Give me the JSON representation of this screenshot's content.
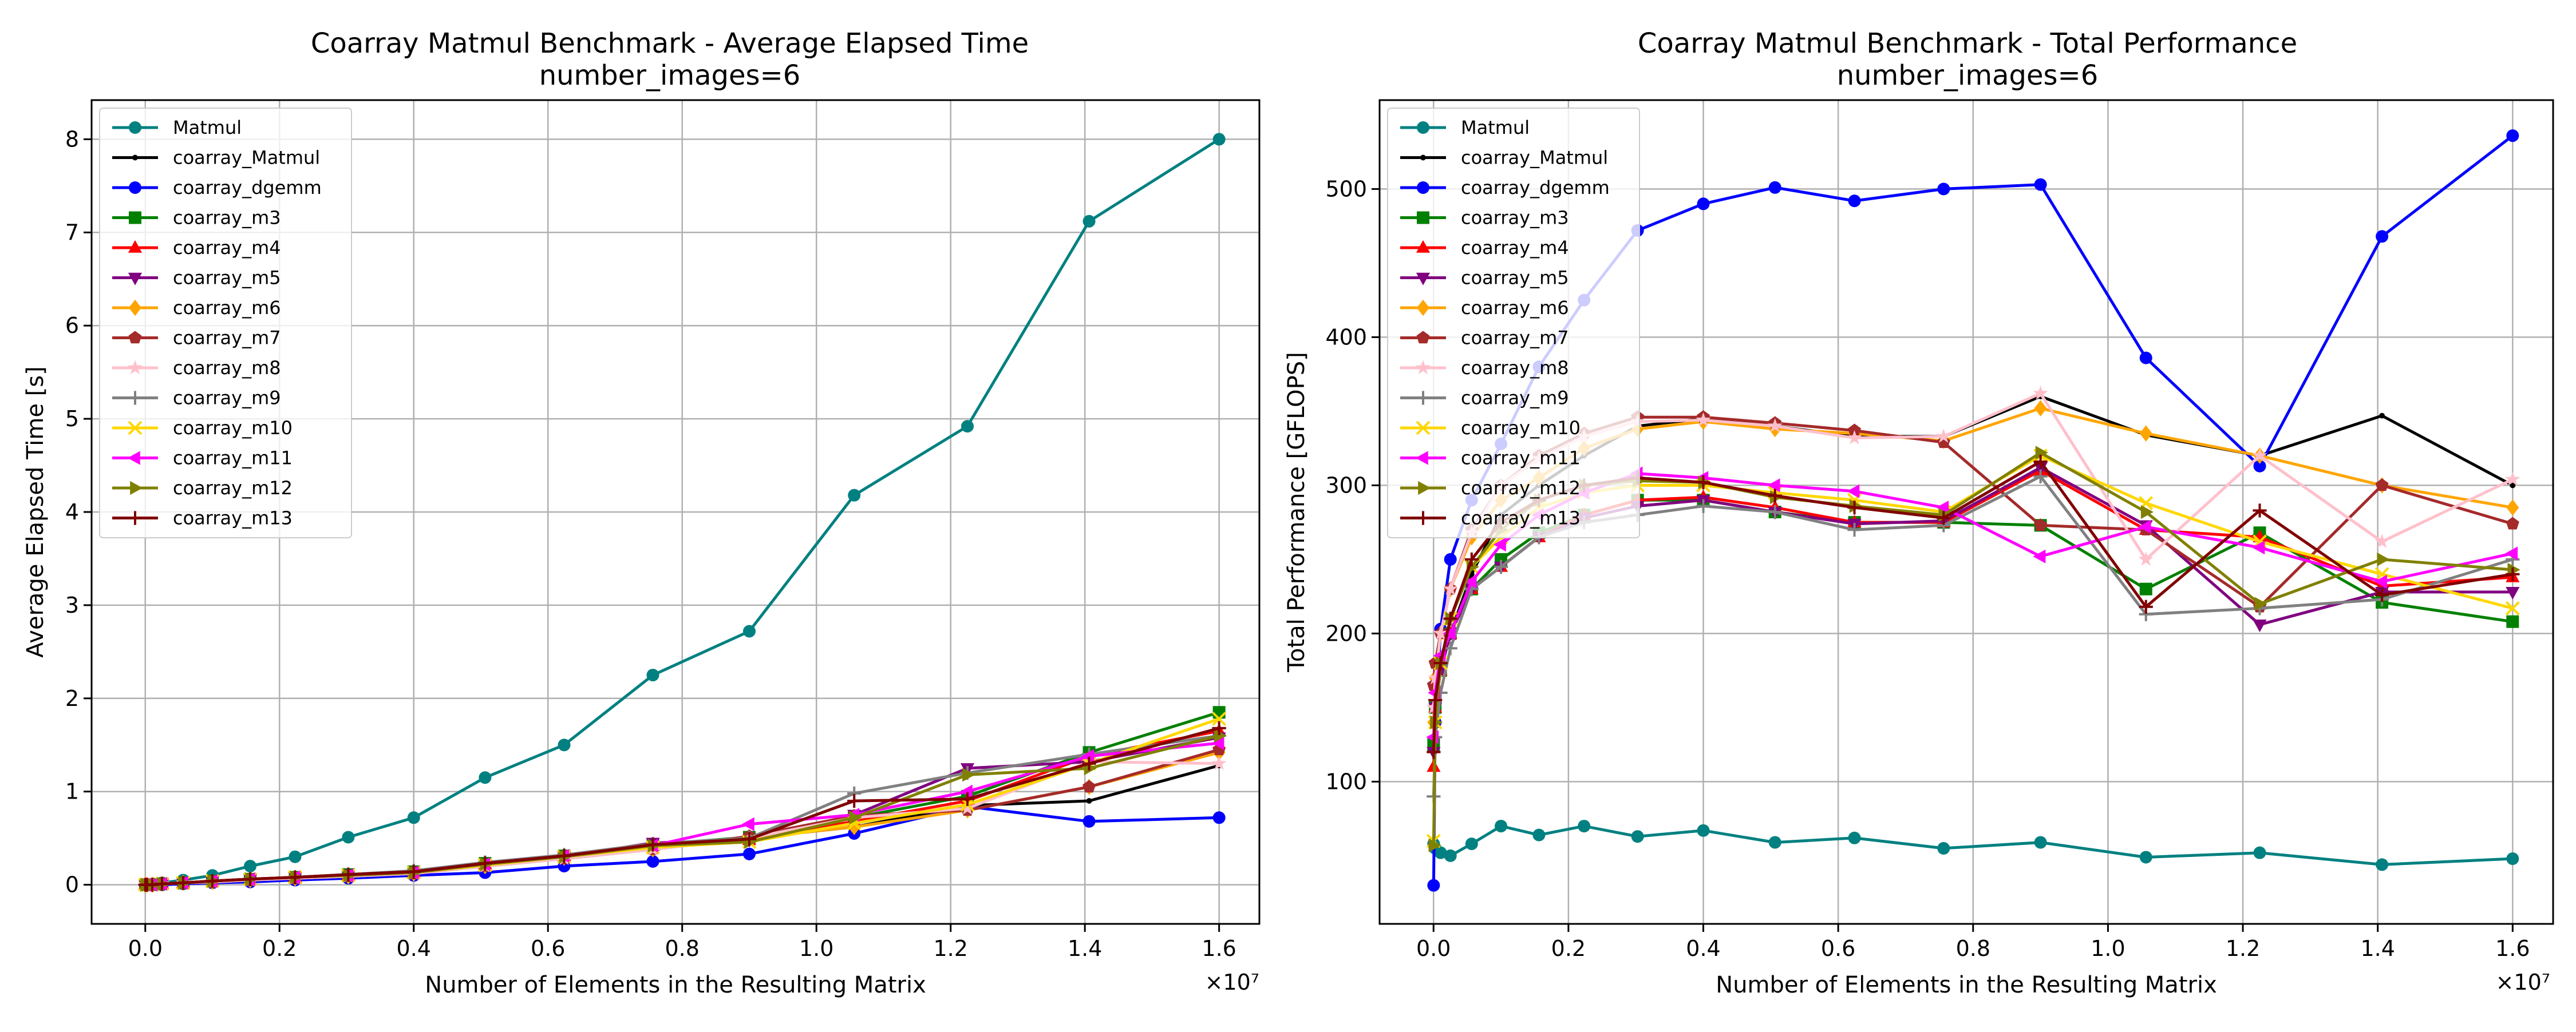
{
  "chart_data": [
    {
      "type": "line",
      "title": "Coarray Matmul Benchmark - Average Elapsed Time",
      "subtitle": "number_images=6",
      "xlabel": "Number of Elements in the Resulting Matrix",
      "ylabel": "Average Elapsed Time [s]",
      "x_offset_label": "×10⁷",
      "xlim": [
        -0.08,
        1.66
      ],
      "ylim": [
        -0.42,
        8.42
      ],
      "xticks": [
        0.0,
        0.2,
        0.4,
        0.6,
        0.8,
        1.0,
        1.2,
        1.4,
        1.6
      ],
      "xtick_labels": [
        "0.0",
        "0.2",
        "0.4",
        "0.6",
        "0.8",
        "1.0",
        "1.2",
        "1.4",
        "1.6"
      ],
      "yticks": [
        0,
        1,
        2,
        3,
        4,
        5,
        6,
        7,
        8
      ],
      "ytick_labels": [
        "0",
        "1",
        "2",
        "3",
        "4",
        "5",
        "6",
        "7",
        "8"
      ],
      "grid": true,
      "legend_position": "upper-left",
      "x": [
        0.0001,
        0.0025,
        0.0105,
        0.025,
        0.0565,
        0.1,
        0.1563,
        0.2232,
        0.3025,
        0.4,
        0.5063,
        0.6241,
        0.7563,
        0.9,
        1.0563,
        1.225,
        1.4063,
        1.6
      ],
      "series": [
        {
          "name": "Matmul",
          "color": "#008080",
          "marker": "circle",
          "values": [
            0.0,
            0.0,
            0.01,
            0.02,
            0.05,
            0.1,
            0.2,
            0.3,
            0.51,
            0.72,
            1.15,
            1.5,
            2.25,
            2.72,
            4.18,
            4.92,
            7.12,
            8.0
          ]
        },
        {
          "name": "coarray_Matmul",
          "color": "#000000",
          "marker": "point",
          "values": [
            0.0,
            0.0,
            0.0,
            0.01,
            0.02,
            0.03,
            0.05,
            0.07,
            0.09,
            0.12,
            0.2,
            0.28,
            0.38,
            0.5,
            0.62,
            0.85,
            0.9,
            1.28
          ]
        },
        {
          "name": "coarray_dgemm",
          "color": "#0000ff",
          "marker": "circle",
          "values": [
            0.0,
            0.0,
            0.0,
            0.0,
            0.01,
            0.02,
            0.03,
            0.05,
            0.07,
            0.1,
            0.13,
            0.2,
            0.25,
            0.33,
            0.55,
            0.84,
            0.68,
            0.72
          ]
        },
        {
          "name": "coarray_m3",
          "color": "#008000",
          "marker": "square",
          "values": [
            0.0,
            0.0,
            0.0,
            0.01,
            0.02,
            0.04,
            0.06,
            0.08,
            0.11,
            0.14,
            0.23,
            0.31,
            0.43,
            0.51,
            0.72,
            0.95,
            1.42,
            1.85
          ]
        },
        {
          "name": "coarray_m4",
          "color": "#ff0000",
          "marker": "triangle-up",
          "values": [
            0.0,
            0.0,
            0.0,
            0.01,
            0.02,
            0.03,
            0.05,
            0.08,
            0.1,
            0.13,
            0.22,
            0.31,
            0.42,
            0.48,
            0.68,
            0.9,
            1.38,
            1.65
          ]
        },
        {
          "name": "coarray_m5",
          "color": "#800080",
          "marker": "triangle-down",
          "values": [
            0.0,
            0.0,
            0.0,
            0.01,
            0.02,
            0.04,
            0.06,
            0.08,
            0.11,
            0.14,
            0.22,
            0.3,
            0.45,
            0.48,
            0.75,
            1.25,
            1.32,
            1.58
          ]
        },
        {
          "name": "coarray_m6",
          "color": "#ffa500",
          "marker": "diamond",
          "values": [
            0.0,
            0.0,
            0.0,
            0.01,
            0.02,
            0.03,
            0.05,
            0.07,
            0.09,
            0.12,
            0.2,
            0.29,
            0.38,
            0.5,
            0.62,
            0.8,
            1.05,
            1.42
          ]
        },
        {
          "name": "coarray_m7",
          "color": "#a52a2a",
          "marker": "pentagon",
          "values": [
            0.0,
            0.0,
            0.0,
            0.01,
            0.02,
            0.03,
            0.05,
            0.07,
            0.09,
            0.12,
            0.2,
            0.28,
            0.38,
            0.52,
            0.74,
            0.8,
            1.05,
            1.45
          ]
        },
        {
          "name": "coarray_m8",
          "color": "#ffc0cb",
          "marker": "star",
          "values": [
            0.0,
            0.0,
            0.0,
            0.01,
            0.02,
            0.03,
            0.05,
            0.07,
            0.09,
            0.12,
            0.2,
            0.28,
            0.38,
            0.5,
            0.72,
            0.82,
            1.32,
            1.3
          ]
        },
        {
          "name": "coarray_m9",
          "color": "#808080",
          "marker": "plus",
          "values": [
            0.0,
            0.0,
            0.0,
            0.01,
            0.02,
            0.04,
            0.06,
            0.08,
            0.11,
            0.15,
            0.24,
            0.32,
            0.44,
            0.5,
            0.98,
            1.2,
            1.4,
            1.6
          ]
        },
        {
          "name": "coarray_m10",
          "color": "#ffd700",
          "marker": "x",
          "values": [
            0.0,
            0.0,
            0.0,
            0.01,
            0.02,
            0.04,
            0.06,
            0.08,
            0.1,
            0.13,
            0.21,
            0.3,
            0.4,
            0.46,
            0.66,
            0.86,
            1.3,
            1.78
          ]
        },
        {
          "name": "coarray_m11",
          "color": "#ff00ff",
          "marker": "triangle-left",
          "values": [
            0.0,
            0.0,
            0.0,
            0.01,
            0.02,
            0.04,
            0.06,
            0.08,
            0.1,
            0.13,
            0.22,
            0.31,
            0.42,
            0.65,
            0.75,
            1.0,
            1.38,
            1.52
          ]
        },
        {
          "name": "coarray_m12",
          "color": "#808000",
          "marker": "triangle-right",
          "values": [
            0.0,
            0.0,
            0.0,
            0.01,
            0.02,
            0.04,
            0.06,
            0.08,
            0.1,
            0.13,
            0.22,
            0.3,
            0.42,
            0.46,
            0.72,
            1.18,
            1.25,
            1.6
          ]
        },
        {
          "name": "coarray_m13",
          "color": "#800000",
          "marker": "plus",
          "values": [
            0.0,
            0.0,
            0.0,
            0.01,
            0.02,
            0.04,
            0.06,
            0.08,
            0.11,
            0.14,
            0.23,
            0.31,
            0.43,
            0.49,
            0.9,
            0.92,
            1.3,
            1.68
          ]
        }
      ]
    },
    {
      "type": "line",
      "title": "Coarray Matmul Benchmark - Total Performance",
      "subtitle": "number_images=6",
      "xlabel": "Number of Elements in the Resulting Matrix",
      "ylabel": "Total Performance [GFLOPS]",
      "x_offset_label": "×10⁷",
      "xlim": [
        -0.08,
        1.66
      ],
      "ylim": [
        4,
        560
      ],
      "xticks": [
        0.0,
        0.2,
        0.4,
        0.6,
        0.8,
        1.0,
        1.2,
        1.4,
        1.6
      ],
      "xtick_labels": [
        "0.0",
        "0.2",
        "0.4",
        "0.6",
        "0.8",
        "1.0",
        "1.2",
        "1.4",
        "1.6"
      ],
      "yticks": [
        100,
        200,
        300,
        400,
        500
      ],
      "ytick_labels": [
        "100",
        "200",
        "300",
        "400",
        "500"
      ],
      "grid": true,
      "legend_position": "upper-left",
      "x": [
        0.0001,
        0.0025,
        0.0105,
        0.025,
        0.0565,
        0.1,
        0.1563,
        0.2232,
        0.3025,
        0.4,
        0.5063,
        0.6241,
        0.7563,
        0.9,
        1.0563,
        1.225,
        1.4063,
        1.6
      ],
      "series": [
        {
          "name": "Matmul",
          "color": "#008080",
          "marker": "circle",
          "values": [
            58,
            55,
            52,
            50,
            58,
            70,
            64,
            70,
            63,
            67,
            59,
            62,
            55,
            59,
            49,
            52,
            44,
            48
          ]
        },
        {
          "name": "coarray_Matmul",
          "color": "#000000",
          "marker": "point",
          "values": [
            120,
            150,
            180,
            200,
            240,
            280,
            300,
            320,
            340,
            345,
            340,
            333,
            333,
            360,
            334,
            320,
            347,
            300
          ]
        },
        {
          "name": "coarray_dgemm",
          "color": "#0000ff",
          "marker": "circle",
          "values": [
            30,
            140,
            203,
            250,
            290,
            328,
            380,
            425,
            472,
            490,
            501,
            492,
            500,
            503,
            386,
            313,
            468,
            536
          ]
        },
        {
          "name": "coarray_m3",
          "color": "#008000",
          "marker": "square",
          "values": [
            125,
            150,
            175,
            200,
            230,
            250,
            268,
            280,
            290,
            290,
            282,
            275,
            275,
            273,
            230,
            268,
            221,
            208
          ]
        },
        {
          "name": "coarray_m4",
          "color": "#ff0000",
          "marker": "triangle-up",
          "values": [
            110,
            150,
            175,
            200,
            230,
            245,
            265,
            280,
            290,
            292,
            285,
            275,
            275,
            310,
            270,
            265,
            232,
            238
          ]
        },
        {
          "name": "coarray_m5",
          "color": "#800080",
          "marker": "triangle-down",
          "values": [
            120,
            150,
            175,
            200,
            230,
            245,
            265,
            278,
            286,
            290,
            282,
            274,
            276,
            312,
            273,
            206,
            228,
            228
          ]
        },
        {
          "name": "coarray_m6",
          "color": "#ffa500",
          "marker": "diamond",
          "values": [
            140,
            170,
            200,
            230,
            265,
            290,
            305,
            325,
            338,
            343,
            338,
            335,
            330,
            352,
            335,
            320,
            300,
            285
          ]
        },
        {
          "name": "coarray_m7",
          "color": "#a52a2a",
          "marker": "pentagon",
          "values": [
            165,
            180,
            200,
            230,
            270,
            300,
            320,
            335,
            346,
            346,
            342,
            337,
            329,
            273,
            270,
            218,
            300,
            274
          ]
        },
        {
          "name": "coarray_m8",
          "color": "#ffc0cb",
          "marker": "star",
          "values": [
            150,
            170,
            200,
            230,
            268,
            300,
            318,
            333,
            343,
            344,
            340,
            332,
            333,
            362,
            250,
            320,
            262,
            304
          ]
        },
        {
          "name": "coarray_m9",
          "color": "#808080",
          "marker": "plus",
          "values": [
            90,
            130,
            160,
            190,
            230,
            245,
            265,
            275,
            280,
            286,
            282,
            270,
            273,
            306,
            213,
            217,
            223,
            250
          ]
        },
        {
          "name": "coarray_m10",
          "color": "#ffd700",
          "marker": "x",
          "values": [
            60,
            140,
            180,
            210,
            245,
            265,
            285,
            295,
            300,
            300,
            295,
            290,
            282,
            320,
            288,
            262,
            240,
            217
          ]
        },
        {
          "name": "coarray_m11",
          "color": "#ff00ff",
          "marker": "triangle-left",
          "values": [
            130,
            160,
            185,
            200,
            235,
            260,
            280,
            295,
            308,
            305,
            300,
            296,
            285,
            252,
            272,
            258,
            235,
            254
          ]
        },
        {
          "name": "coarray_m12",
          "color": "#808000",
          "marker": "triangle-right",
          "values": [
            57,
            140,
            180,
            210,
            245,
            270,
            290,
            300,
            303,
            302,
            292,
            286,
            280,
            322,
            282,
            220,
            250,
            243
          ]
        },
        {
          "name": "coarray_m13",
          "color": "#800000",
          "marker": "plus",
          "values": [
            120,
            155,
            180,
            210,
            250,
            275,
            290,
            300,
            305,
            302,
            293,
            285,
            278,
            316,
            218,
            283,
            226,
            240
          ]
        }
      ]
    }
  ]
}
